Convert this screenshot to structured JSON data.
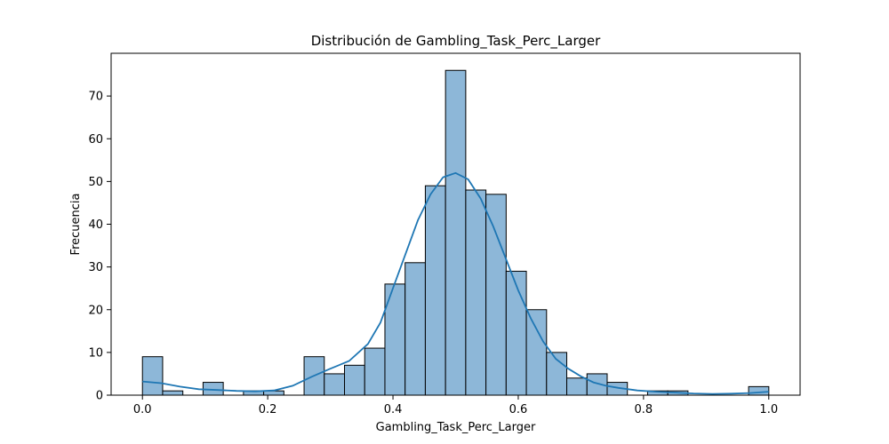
{
  "chart_data": {
    "type": "bar",
    "title": "Distribución de Gambling_Task_Perc_Larger",
    "xlabel": "Gambling_Task_Perc_Larger",
    "ylabel": "Frecuencia",
    "xlim": [
      -0.05,
      1.05
    ],
    "ylim": [
      0,
      80
    ],
    "xticks": [
      0.0,
      0.2,
      0.4,
      0.6,
      0.8,
      1.0
    ],
    "xtick_labels": [
      "0.0",
      "0.2",
      "0.4",
      "0.6",
      "0.8",
      "1.0"
    ],
    "yticks": [
      0,
      10,
      20,
      30,
      40,
      50,
      60,
      70
    ],
    "ytick_labels": [
      "0",
      "10",
      "20",
      "30",
      "40",
      "50",
      "60",
      "70"
    ],
    "grid": false,
    "bar_color": "#8db7d8",
    "line_color": "#1f77b4",
    "bins": {
      "start": 0.0,
      "width": 0.03226,
      "counts": [
        9,
        1,
        0,
        3,
        0,
        1,
        1,
        0,
        9,
        5,
        7,
        11,
        26,
        31,
        49,
        76,
        48,
        47,
        29,
        20,
        10,
        4,
        5,
        3,
        0,
        1,
        1,
        0,
        0,
        0,
        2
      ]
    },
    "kde": {
      "x": [
        0.0,
        0.03,
        0.06,
        0.09,
        0.12,
        0.15,
        0.18,
        0.21,
        0.24,
        0.27,
        0.3,
        0.33,
        0.36,
        0.38,
        0.4,
        0.42,
        0.44,
        0.46,
        0.48,
        0.5,
        0.52,
        0.54,
        0.56,
        0.58,
        0.6,
        0.62,
        0.64,
        0.66,
        0.68,
        0.7,
        0.72,
        0.74,
        0.76,
        0.79,
        0.82,
        0.85,
        0.88,
        0.91,
        0.94,
        0.97,
        1.0
      ],
      "y": [
        3.2,
        2.8,
        2.0,
        1.4,
        1.2,
        1.0,
        0.9,
        1.1,
        2.2,
        4.3,
        6.2,
        8.0,
        12.0,
        17.0,
        25.0,
        33.0,
        41.0,
        47.0,
        51.0,
        52.0,
        50.5,
        46.0,
        39.5,
        32.0,
        24.5,
        18.0,
        12.5,
        8.5,
        6.2,
        4.4,
        3.0,
        2.2,
        1.7,
        1.1,
        0.8,
        0.6,
        0.4,
        0.3,
        0.35,
        0.5,
        0.8
      ]
    }
  }
}
